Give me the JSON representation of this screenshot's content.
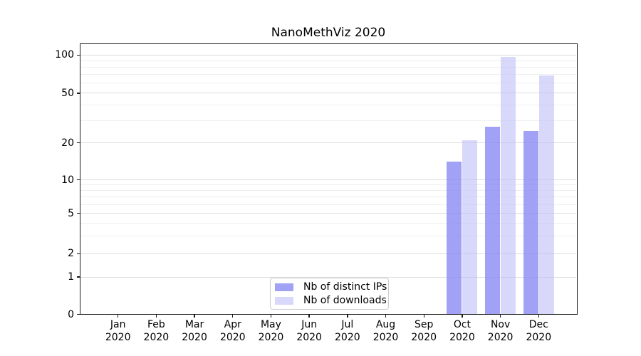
{
  "chart_data": {
    "type": "bar",
    "title": "NanoMethViz 2020",
    "categories": [
      "Jan 2020",
      "Feb 2020",
      "Mar 2020",
      "Apr 2020",
      "May 2020",
      "Jun 2020",
      "Jul 2020",
      "Aug 2020",
      "Sep 2020",
      "Oct 2020",
      "Nov 2020",
      "Dec 2020"
    ],
    "series": [
      {
        "name": "Nb of distinct IPs",
        "color": "rgba(138,138,242,0.8)",
        "values": [
          0,
          0,
          0,
          0,
          0,
          0,
          0,
          0,
          0,
          14,
          27,
          25
        ]
      },
      {
        "name": "Nb of downloads",
        "color": "rgba(190,190,246,0.6)",
        "values": [
          0,
          0,
          0,
          0,
          0,
          0,
          0,
          0,
          0,
          21,
          97,
          69
        ]
      }
    ],
    "yaxis": {
      "scale": "log-like",
      "ticks": [
        0,
        1,
        2,
        5,
        10,
        20,
        50,
        100
      ],
      "minor_gridlines": [
        3,
        4,
        6,
        7,
        8,
        9,
        30,
        40,
        60,
        70,
        80,
        90
      ]
    },
    "xlabel": "",
    "ylabel": "",
    "legend": {
      "position": "lower center"
    },
    "colors": {
      "distinct_ips_rendered": "#a1a1f4",
      "downloads_rendered": "#d8d8fa",
      "gridline_major": "#dcdcdc",
      "gridline_minor": "#efefef",
      "axis": "#1a1a1a",
      "background": "#ffffff"
    }
  }
}
